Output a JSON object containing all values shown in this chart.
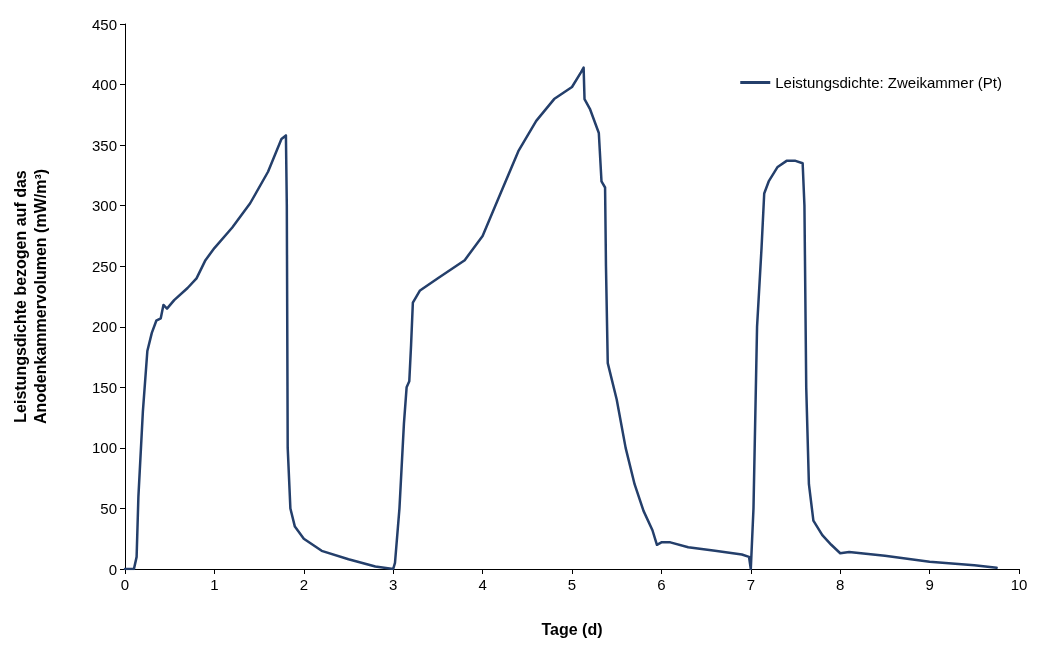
{
  "chart_data": {
    "type": "line",
    "xlabel": "Tage (d)",
    "ylabel": "Leistungsdichte bezogen auf das\nAnodenkammervolumen (mW/m³)",
    "xlim": [
      0,
      10
    ],
    "xticks": [
      0,
      1,
      2,
      3,
      4,
      5,
      6,
      7,
      8,
      9,
      10
    ],
    "ylim": [
      0,
      450
    ],
    "yticks": [
      0,
      50,
      100,
      150,
      200,
      250,
      300,
      350,
      400,
      450
    ],
    "grid": false,
    "legend": "top right",
    "marker": "none",
    "line_style": "solid",
    "series": [
      {
        "name": "Leistungsdichte: Zweikammer (Pt)",
        "color": "#243f6b",
        "x": [
          0,
          0.1,
          0.13,
          0.15,
          0.2,
          0.25,
          0.3,
          0.35,
          0.4,
          0.43,
          0.47,
          0.55,
          0.7,
          0.8,
          0.9,
          1.0,
          1.2,
          1.4,
          1.6,
          1.75,
          1.8,
          1.81,
          1.82,
          1.85,
          1.9,
          2.0,
          2.2,
          2.5,
          2.8,
          3.0,
          3.02,
          3.07,
          3.12,
          3.15,
          3.18,
          3.2,
          3.22,
          3.3,
          3.5,
          3.8,
          4.0,
          4.2,
          4.4,
          4.6,
          4.8,
          5.0,
          5.1,
          5.13,
          5.14,
          5.2,
          5.3,
          5.33,
          5.37,
          5.38,
          5.4,
          5.5,
          5.6,
          5.7,
          5.8,
          5.9,
          5.95,
          6.0,
          6.1,
          6.3,
          6.6,
          6.9,
          6.98,
          7.0,
          7.03,
          7.07,
          7.12,
          7.15,
          7.2,
          7.3,
          7.4,
          7.5,
          7.58,
          7.6,
          7.62,
          7.65,
          7.7,
          7.8,
          7.9,
          8.0,
          8.1,
          8.5,
          9.0,
          9.5,
          9.75
        ],
        "values": [
          0,
          0,
          10,
          60,
          130,
          180,
          195,
          205,
          207,
          218,
          215,
          222,
          232,
          240,
          255,
          265,
          282,
          302,
          328,
          355,
          358,
          300,
          100,
          50,
          35,
          25,
          15,
          8,
          2,
          0,
          5,
          50,
          120,
          150,
          155,
          185,
          220,
          230,
          240,
          255,
          275,
          310,
          345,
          370,
          388,
          398,
          410,
          414,
          388,
          380,
          360,
          320,
          315,
          250,
          170,
          140,
          100,
          70,
          48,
          32,
          20,
          22,
          22,
          18,
          15,
          12,
          10,
          0,
          50,
          200,
          265,
          310,
          320,
          332,
          337,
          337,
          335,
          300,
          150,
          70,
          40,
          28,
          20,
          13,
          14,
          11,
          6,
          3,
          1
        ]
      }
    ]
  }
}
